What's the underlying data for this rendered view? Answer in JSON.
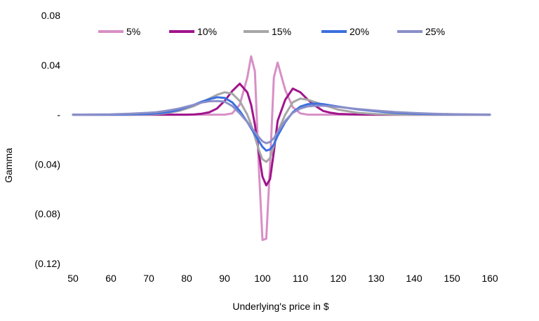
{
  "chart_data": {
    "type": "line",
    "xlabel": "Underlying's price in $",
    "ylabel": "Gamma",
    "xlim": [
      50,
      160
    ],
    "ylim": [
      -0.12,
      0.08
    ],
    "x_ticks": [
      50,
      60,
      70,
      80,
      90,
      100,
      110,
      120,
      130,
      140,
      150,
      160
    ],
    "x_tick_labels": [
      "50",
      "60",
      "70",
      "80",
      "90",
      "100",
      "110",
      "120",
      "130",
      "140",
      "150",
      "160"
    ],
    "y_ticks": [
      0.08,
      0.04,
      0,
      -0.04,
      -0.08,
      -0.12
    ],
    "y_tick_labels": [
      "0.08",
      "0.04",
      "-",
      "(0.04)",
      "(0.08)",
      "(0.12)"
    ],
    "grid": false,
    "legend_position": "top",
    "x": [
      50,
      55,
      60,
      65,
      70,
      72,
      74,
      76,
      78,
      80,
      82,
      84,
      86,
      88,
      90,
      92,
      94,
      96,
      97,
      98,
      99,
      100,
      101,
      102,
      103,
      104,
      106,
      108,
      110,
      112,
      114,
      116,
      118,
      120,
      125,
      130,
      135,
      140,
      145,
      150,
      155,
      160
    ],
    "series": [
      {
        "name": "5%",
        "color": "#d88fc6",
        "values": [
          0,
          0,
          0,
          0,
          0,
          0,
          0,
          0,
          0,
          0,
          0,
          0,
          0,
          0,
          0,
          0.001,
          0.008,
          0.03,
          0.047,
          0.035,
          -0.04,
          -0.101,
          -0.1,
          -0.04,
          0.03,
          0.042,
          0.02,
          0.006,
          0.001,
          0,
          0,
          0,
          0,
          0,
          0,
          0,
          0,
          0,
          0,
          0,
          0,
          0
        ]
      },
      {
        "name": "10%",
        "color": "#a0148c",
        "values": [
          0,
          0,
          0,
          0,
          0,
          0,
          0,
          0,
          0,
          0,
          0.0002,
          0.0008,
          0.002,
          0.005,
          0.011,
          0.019,
          0.025,
          0.018,
          0.008,
          -0.008,
          -0.03,
          -0.05,
          -0.057,
          -0.052,
          -0.03,
          -0.005,
          0.012,
          0.021,
          0.018,
          0.012,
          0.007,
          0.003,
          0.0015,
          0.0006,
          0.0001,
          0,
          0,
          0,
          0,
          0,
          0,
          0
        ]
      },
      {
        "name": "15%",
        "color": "#a6a6a6",
        "values": [
          0,
          0,
          0,
          0,
          0.0002,
          0.0005,
          0.001,
          0.002,
          0.003,
          0.005,
          0.007,
          0.01,
          0.013,
          0.016,
          0.018,
          0.017,
          0.011,
          0.0,
          -0.008,
          -0.018,
          -0.028,
          -0.036,
          -0.038,
          -0.035,
          -0.025,
          -0.014,
          0.0,
          0.01,
          0.013,
          0.012,
          0.01,
          0.008,
          0.006,
          0.004,
          0.0015,
          0.0005,
          0.0001,
          0,
          0,
          0,
          0,
          0
        ]
      },
      {
        "name": "20%",
        "color": "#3b6fe0",
        "values": [
          0,
          0,
          0,
          0.0002,
          0.0006,
          0.001,
          0.0016,
          0.0025,
          0.004,
          0.006,
          0.008,
          0.0105,
          0.0125,
          0.014,
          0.0135,
          0.01,
          0.003,
          -0.006,
          -0.011,
          -0.016,
          -0.021,
          -0.026,
          -0.029,
          -0.028,
          -0.024,
          -0.017,
          -0.006,
          0.002,
          0.0065,
          0.0085,
          0.009,
          0.0085,
          0.0075,
          0.0065,
          0.0043,
          0.0027,
          0.0015,
          0.0008,
          0.0004,
          0.0002,
          0.0001,
          0
        ]
      },
      {
        "name": "25%",
        "color": "#8a8fc8",
        "values": [
          0,
          0.0001,
          0.0003,
          0.0008,
          0.0015,
          0.002,
          0.0028,
          0.0038,
          0.005,
          0.0065,
          0.008,
          0.0098,
          0.0108,
          0.011,
          0.0105,
          0.007,
          0.001,
          -0.006,
          -0.01,
          -0.014,
          -0.018,
          -0.0215,
          -0.023,
          -0.022,
          -0.019,
          -0.014,
          -0.005,
          0.0015,
          0.005,
          0.0067,
          0.0072,
          0.0072,
          0.0068,
          0.0062,
          0.0046,
          0.0032,
          0.0021,
          0.0013,
          0.0008,
          0.0004,
          0.0002,
          0.0001
        ]
      }
    ]
  }
}
